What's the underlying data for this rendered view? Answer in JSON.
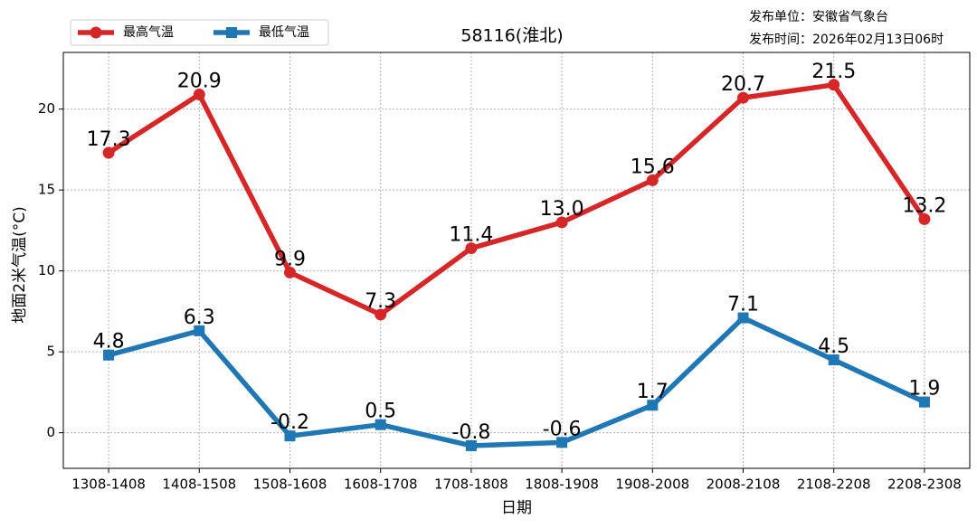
{
  "chart_data": {
    "type": "line",
    "title": "58116(淮北)",
    "info": [
      "发布单位：安徽省气象台",
      "发布时间：2026年02月13日06时"
    ],
    "x_label": "日期",
    "y_label": "地面2米气温(°C)",
    "categories": [
      "1308-1408",
      "1408-1508",
      "1508-1608",
      "1608-1708",
      "1708-1808",
      "1808-1908",
      "1908-2008",
      "2008-2108",
      "2108-2208",
      "2208-2308"
    ],
    "series": [
      {
        "name": "最高气温",
        "color": "#d62728",
        "marker": "circle",
        "values": [
          17.3,
          20.9,
          9.9,
          7.3,
          11.4,
          13.0,
          15.6,
          20.7,
          21.5,
          13.2
        ],
        "value_labels": [
          "17.3",
          "20.9",
          "9.9",
          "7.3",
          "11.4",
          "13.0",
          "15.6",
          "20.7",
          "21.5",
          "13.2"
        ]
      },
      {
        "name": "最低气温",
        "color": "#1f77b4",
        "marker": "square",
        "values": [
          4.8,
          6.3,
          -0.2,
          0.5,
          -0.8,
          -0.6,
          1.7,
          7.1,
          4.5,
          1.9
        ],
        "value_labels": [
          "4.8",
          "6.3",
          "-0.2",
          "0.5",
          "-0.8",
          "-0.6",
          "1.7",
          "7.1",
          "4.5",
          "1.9"
        ]
      }
    ],
    "ylim": [
      -2.2,
      23.5
    ],
    "yticks": [
      0,
      5,
      10,
      15,
      20
    ],
    "grid": true,
    "legend": "top-left"
  }
}
